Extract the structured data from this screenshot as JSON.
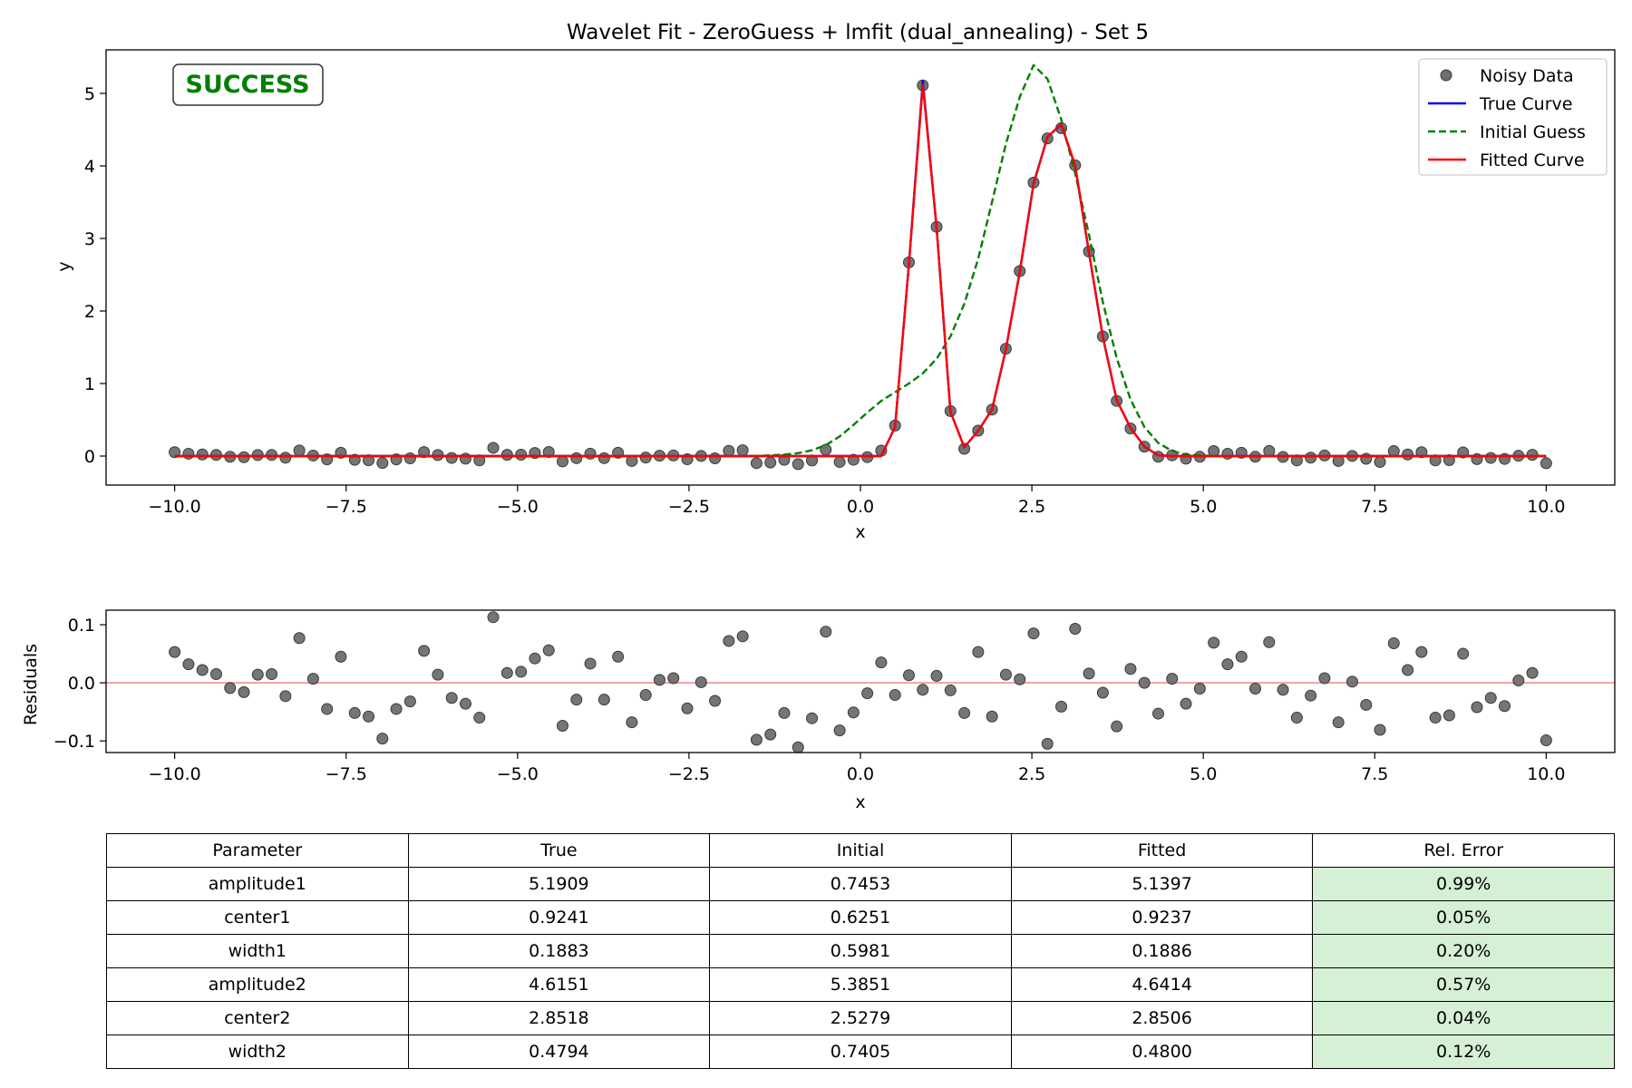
{
  "chart_data": [
    {
      "type": "line",
      "title": "Wavelet Fit - ZeroGuess + lmfit (dual_annealing) - Set 5",
      "xlabel": "x",
      "ylabel": "y",
      "xlim": [
        -11,
        11
      ],
      "ylim": [
        -0.4,
        5.6
      ],
      "xticks": [
        -10,
        -7.5,
        -5,
        -2.5,
        0,
        2.5,
        5,
        7.5,
        10
      ],
      "xtick_labels": [
        "−10.0",
        "−7.5",
        "−5.0",
        "−2.5",
        "0.0",
        "2.5",
        "5.0",
        "7.5",
        "10.0"
      ],
      "yticks": [
        0,
        1,
        2,
        3,
        4,
        5
      ],
      "ytick_labels": [
        "0",
        "1",
        "2",
        "3",
        "4",
        "5"
      ],
      "grid": false,
      "legend_position": "top-right",
      "annotation": "SUCCESS",
      "x": [
        -10.0,
        -9.798,
        -9.596,
        -9.394,
        -9.192,
        -8.99,
        -8.788,
        -8.586,
        -8.384,
        -8.182,
        -7.98,
        -7.778,
        -7.576,
        -7.374,
        -7.172,
        -6.97,
        -6.768,
        -6.566,
        -6.364,
        -6.162,
        -5.96,
        -5.758,
        -5.556,
        -5.354,
        -5.152,
        -4.949,
        -4.747,
        -4.545,
        -4.343,
        -4.141,
        -3.939,
        -3.737,
        -3.535,
        -3.333,
        -3.131,
        -2.929,
        -2.727,
        -2.525,
        -2.323,
        -2.121,
        -1.919,
        -1.717,
        -1.515,
        -1.313,
        -1.111,
        -0.909,
        -0.707,
        -0.505,
        -0.303,
        -0.101,
        0.101,
        0.303,
        0.505,
        0.707,
        0.909,
        1.111,
        1.313,
        1.515,
        1.717,
        1.919,
        2.121,
        2.323,
        2.525,
        2.727,
        2.929,
        3.131,
        3.333,
        3.535,
        3.737,
        3.939,
        4.141,
        4.343,
        4.545,
        4.747,
        4.949,
        5.152,
        5.354,
        5.556,
        5.758,
        5.96,
        6.162,
        6.364,
        6.566,
        6.768,
        6.97,
        7.172,
        7.374,
        7.576,
        7.778,
        7.98,
        8.182,
        8.384,
        8.586,
        8.788,
        8.99,
        9.192,
        9.394,
        9.596,
        9.798,
        10.0
      ],
      "series": [
        {
          "name": "Noisy Data",
          "style": "scatter",
          "color": "#6e6e6e",
          "values": [
            0.053,
            0.032,
            0.022,
            0.015,
            -0.009,
            -0.016,
            0.014,
            0.015,
            -0.023,
            0.077,
            0.007,
            -0.045,
            0.045,
            -0.052,
            -0.058,
            -0.096,
            -0.045,
            -0.032,
            0.055,
            0.014,
            -0.026,
            -0.036,
            -0.06,
            0.113,
            0.017,
            0.019,
            0.042,
            0.056,
            -0.074,
            -0.029,
            0.033,
            -0.029,
            0.045,
            -0.068,
            -0.021,
            0.005,
            0.008,
            -0.044,
            0.001,
            -0.031,
            0.072,
            0.08,
            -0.098,
            -0.089,
            -0.052,
            -0.111,
            -0.061,
            0.088,
            -0.082,
            -0.051,
            -0.015,
            0.075,
            0.42,
            2.67,
            5.11,
            3.16,
            0.62,
            0.1,
            0.35,
            0.64,
            1.48,
            2.55,
            3.77,
            4.38,
            4.52,
            4.01,
            2.82,
            1.65,
            0.76,
            0.38,
            0.13,
            -0.01,
            0.01,
            -0.036,
            -0.01,
            0.069,
            0.032,
            0.045,
            -0.01,
            0.07,
            -0.012,
            -0.06,
            -0.022,
            0.008,
            -0.068,
            0.002,
            -0.038,
            -0.081,
            0.068,
            0.022,
            0.053,
            -0.06,
            -0.056,
            0.05,
            -0.042,
            -0.026,
            -0.04,
            0.004,
            0.017,
            -0.099
          ]
        },
        {
          "name": "True Curve",
          "style": "solid",
          "color": "#0000ff",
          "values": [
            0,
            0,
            0,
            0,
            0,
            0,
            0,
            0,
            0,
            0,
            0,
            0,
            0,
            0,
            0,
            0,
            0,
            0,
            0,
            0,
            0,
            0,
            0,
            0,
            0,
            0,
            0,
            0,
            0,
            0,
            0,
            0,
            0,
            0,
            0,
            0,
            0,
            0,
            0,
            0,
            0,
            0,
            0,
            0,
            0,
            0,
            0,
            0,
            0,
            0,
            0,
            0,
            0.4,
            2.65,
            5.17,
            3.15,
            0.61,
            0.12,
            0.35,
            0.64,
            1.47,
            2.54,
            3.76,
            4.4,
            4.57,
            4.0,
            2.8,
            1.64,
            0.77,
            0.39,
            0.13,
            0.01,
            0,
            0,
            0,
            0,
            0,
            0,
            0,
            0,
            0,
            0,
            0,
            0,
            0,
            0,
            0,
            0,
            0,
            0,
            0,
            0,
            0,
            0,
            0,
            0,
            0,
            0,
            0,
            0
          ]
        },
        {
          "name": "Initial Guess",
          "style": "dashed",
          "color": "#008000",
          "values": [
            0,
            0,
            0,
            0,
            0,
            0,
            0,
            0,
            0,
            0,
            0,
            0,
            0,
            0,
            0,
            0,
            0,
            0,
            0,
            0,
            0,
            0,
            0,
            0,
            0,
            0,
            0,
            0,
            0,
            0,
            0,
            0,
            0,
            0,
            0,
            0,
            0,
            0,
            0,
            0,
            0,
            0,
            0,
            0.01,
            0.02,
            0.04,
            0.08,
            0.15,
            0.27,
            0.43,
            0.6,
            0.76,
            0.88,
            1.0,
            1.14,
            1.34,
            1.65,
            2.1,
            2.72,
            3.5,
            4.3,
            4.95,
            5.39,
            5.2,
            4.64,
            3.9,
            3.05,
            2.12,
            1.35,
            0.78,
            0.4,
            0.18,
            0.07,
            0.02,
            0.01,
            0,
            0,
            0,
            0,
            0,
            0,
            0,
            0,
            0,
            0,
            0,
            0,
            0,
            0,
            0,
            0,
            0,
            0,
            0,
            0,
            0,
            0,
            0,
            0,
            0
          ]
        },
        {
          "name": "Fitted Curve",
          "style": "solid",
          "color": "#ff0000",
          "values": [
            0,
            0,
            0,
            0,
            0,
            0,
            0,
            0,
            0,
            0,
            0,
            0,
            0,
            0,
            0,
            0,
            0,
            0,
            0,
            0,
            0,
            0,
            0,
            0,
            0,
            0,
            0,
            0,
            0,
            0,
            0,
            0,
            0,
            0,
            0,
            0,
            0,
            0,
            0,
            0,
            0,
            0,
            0,
            0,
            0,
            0,
            0,
            0,
            0,
            0,
            0,
            0,
            0.4,
            2.64,
            5.12,
            3.15,
            0.61,
            0.12,
            0.35,
            0.64,
            1.47,
            2.53,
            3.75,
            4.4,
            4.58,
            4.01,
            2.81,
            1.64,
            0.77,
            0.39,
            0.13,
            0.01,
            0,
            0,
            0,
            0,
            0,
            0,
            0,
            0,
            0,
            0,
            0,
            0,
            0,
            0,
            0,
            0,
            0,
            0,
            0,
            0,
            0,
            0,
            0,
            0,
            0,
            0,
            0,
            0
          ]
        }
      ]
    },
    {
      "type": "scatter",
      "title": "",
      "xlabel": "x",
      "ylabel": "Residuals",
      "xlim": [
        -11,
        11
      ],
      "ylim": [
        -0.12,
        0.125
      ],
      "xticks": [
        -10,
        -7.5,
        -5,
        -2.5,
        0,
        2.5,
        5,
        7.5,
        10
      ],
      "xtick_labels": [
        "−10.0",
        "−7.5",
        "−5.0",
        "−2.5",
        "0.0",
        "2.5",
        "5.0",
        "7.5",
        "10.0"
      ],
      "yticks": [
        0.1,
        0.0,
        -0.1
      ],
      "ytick_labels": [
        "0.1",
        "0.0",
        "−0.1"
      ],
      "reference_line": 0,
      "reference_color": "#f4a0a0",
      "grid": false,
      "point_color": "#6e6e6e",
      "values": [
        0.053,
        0.032,
        0.022,
        0.015,
        -0.009,
        -0.016,
        0.014,
        0.015,
        -0.023,
        0.077,
        0.007,
        -0.045,
        0.045,
        -0.052,
        -0.058,
        -0.096,
        -0.045,
        -0.032,
        0.055,
        0.014,
        -0.026,
        -0.036,
        -0.06,
        0.113,
        0.017,
        0.019,
        0.042,
        0.056,
        -0.074,
        -0.029,
        0.033,
        -0.029,
        0.045,
        -0.068,
        -0.021,
        0.005,
        0.008,
        -0.044,
        0.001,
        -0.031,
        0.072,
        0.08,
        -0.098,
        -0.089,
        -0.052,
        -0.111,
        -0.061,
        0.088,
        -0.082,
        -0.051,
        -0.018,
        0.035,
        -0.021,
        0.013,
        -0.012,
        0.012,
        -0.013,
        -0.052,
        0.053,
        -0.058,
        0.014,
        0.006,
        0.085,
        -0.105,
        -0.041,
        0.093,
        0.016,
        -0.017,
        -0.075,
        0.024,
        0.0,
        -0.053,
        0.007,
        -0.036,
        -0.01,
        0.069,
        0.032,
        0.045,
        -0.01,
        0.07,
        -0.012,
        -0.06,
        -0.022,
        0.008,
        -0.068,
        0.002,
        -0.038,
        -0.081,
        0.068,
        0.022,
        0.053,
        -0.06,
        -0.056,
        0.05,
        -0.042,
        -0.026,
        -0.04,
        0.004,
        0.017,
        -0.099
      ]
    },
    {
      "type": "table",
      "columns": [
        "Parameter",
        "True",
        "Initial",
        "Fitted",
        "Rel. Error"
      ],
      "error_cell_color": "#d5f0d5",
      "rows": [
        [
          "amplitude1",
          "5.1909",
          "0.7453",
          "5.1397",
          "0.99%"
        ],
        [
          "center1",
          "0.9241",
          "0.6251",
          "0.9237",
          "0.05%"
        ],
        [
          "width1",
          "0.1883",
          "0.5981",
          "0.1886",
          "0.20%"
        ],
        [
          "amplitude2",
          "4.6151",
          "5.3851",
          "4.6414",
          "0.57%"
        ],
        [
          "center2",
          "2.8518",
          "2.5279",
          "2.8506",
          "0.04%"
        ],
        [
          "width2",
          "0.4794",
          "0.7405",
          "0.4800",
          "0.12%"
        ]
      ]
    }
  ]
}
